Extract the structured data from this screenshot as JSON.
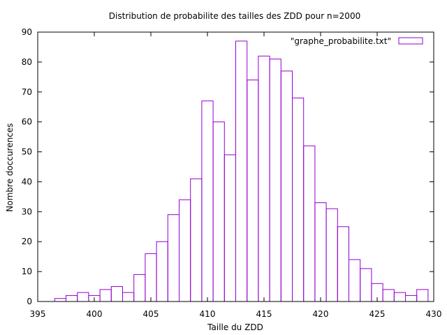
{
  "chart_data": {
    "type": "bar",
    "title": "Distribution de probabilite des tailles des ZDD pour n=2000",
    "xlabel": "Taille du ZDD",
    "ylabel": "Nombre doccurences",
    "xlim": [
      395,
      430
    ],
    "ylim": [
      0,
      90
    ],
    "xticks": [
      395,
      400,
      405,
      410,
      415,
      420,
      425,
      430
    ],
    "yticks": [
      0,
      10,
      20,
      30,
      40,
      50,
      60,
      70,
      80,
      90
    ],
    "grid": false,
    "legend_position": "top-right",
    "bar_color": "#9400d3",
    "series": [
      {
        "name": "\"graphe_probabilite.txt\"",
        "x": [
          397,
          398,
          399,
          400,
          401,
          402,
          403,
          404,
          405,
          406,
          407,
          408,
          409,
          410,
          411,
          412,
          413,
          414,
          415,
          416,
          417,
          418,
          419,
          420,
          421,
          422,
          423,
          424,
          425,
          426,
          427,
          428,
          429
        ],
        "values": [
          1,
          2,
          3,
          2,
          4,
          5,
          3,
          9,
          16,
          20,
          29,
          34,
          41,
          67,
          60,
          49,
          87,
          74,
          82,
          81,
          77,
          68,
          52,
          33,
          31,
          25,
          14,
          11,
          6,
          4,
          3,
          2,
          4
        ]
      }
    ]
  }
}
